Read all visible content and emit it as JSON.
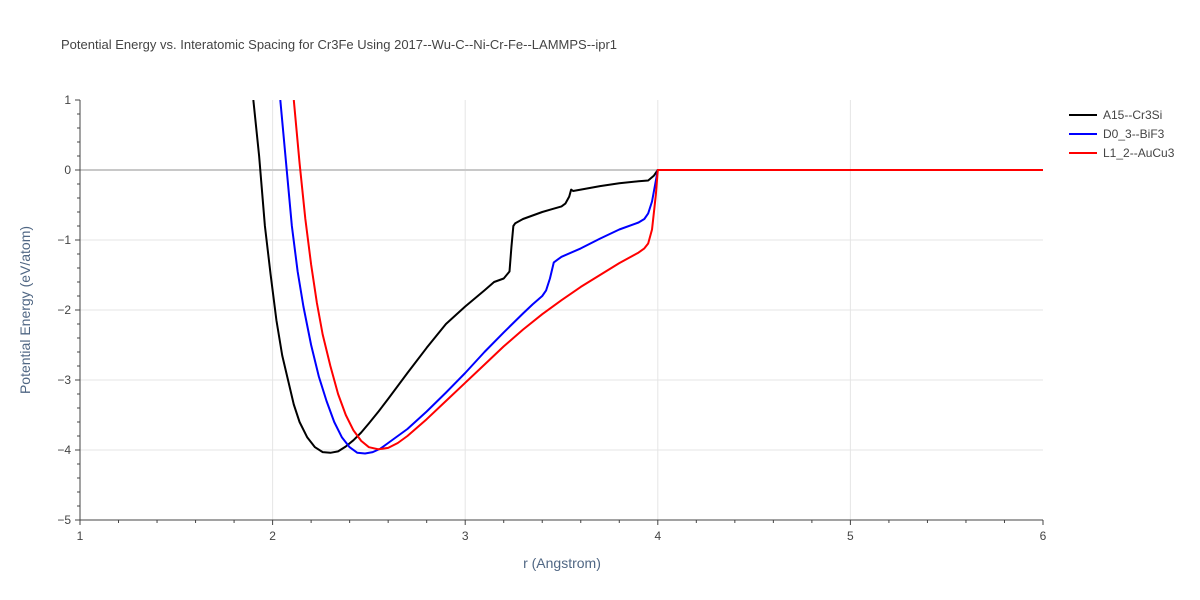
{
  "chart_data": {
    "type": "line",
    "title": "Potential Energy vs. Interatomic Spacing for Cr3Fe Using 2017--Wu-C--Ni-Cr-Fe--LAMMPS--ipr1",
    "xlabel": "r (Angstrom)",
    "ylabel": "Potential Energy (eV/atom)",
    "xlim": [
      1,
      6
    ],
    "ylim": [
      -5,
      1
    ],
    "xticks": [
      1,
      2,
      3,
      4,
      5,
      6
    ],
    "xtick_labels": [
      "1",
      "2",
      "3",
      "4",
      "5",
      "6"
    ],
    "yticks": [
      1,
      0,
      -1,
      -2,
      -3,
      -4,
      -5
    ],
    "ytick_labels": [
      "1",
      "0",
      "−1",
      "−2",
      "−3",
      "−4",
      "−5"
    ],
    "grid": true,
    "legend_position": "top-right",
    "series": [
      {
        "name": "A15--Cr3Si",
        "color": "#000000",
        "x": [
          1.9,
          1.93,
          1.96,
          1.99,
          2.02,
          2.05,
          2.08,
          2.11,
          2.14,
          2.18,
          2.22,
          2.26,
          2.3,
          2.34,
          2.38,
          2.42,
          2.46,
          2.5,
          2.55,
          2.6,
          2.7,
          2.8,
          2.9,
          3.0,
          3.1,
          3.15,
          3.2,
          3.23,
          3.24,
          3.25,
          3.26,
          3.28,
          3.3,
          3.35,
          3.4,
          3.45,
          3.5,
          3.52,
          3.54,
          3.55,
          3.56,
          3.6,
          3.7,
          3.8,
          3.9,
          3.95,
          3.98,
          4.0,
          4.5,
          5.0,
          5.5,
          6.0
        ],
        "y": [
          1.0,
          0.2,
          -0.8,
          -1.5,
          -2.15,
          -2.65,
          -3.0,
          -3.35,
          -3.6,
          -3.82,
          -3.96,
          -4.03,
          -4.04,
          -4.02,
          -3.95,
          -3.86,
          -3.75,
          -3.62,
          -3.45,
          -3.27,
          -2.9,
          -2.54,
          -2.2,
          -1.95,
          -1.72,
          -1.6,
          -1.55,
          -1.45,
          -1.1,
          -0.8,
          -0.76,
          -0.73,
          -0.7,
          -0.65,
          -0.6,
          -0.56,
          -0.52,
          -0.48,
          -0.38,
          -0.28,
          -0.3,
          -0.28,
          -0.23,
          -0.19,
          -0.16,
          -0.15,
          -0.08,
          0.0,
          0.0,
          0.0,
          0.0,
          0.0
        ]
      },
      {
        "name": "D0_3--BiF3",
        "color": "#0000ff",
        "x": [
          2.04,
          2.07,
          2.1,
          2.13,
          2.16,
          2.2,
          2.24,
          2.28,
          2.32,
          2.36,
          2.4,
          2.44,
          2.48,
          2.52,
          2.56,
          2.6,
          2.7,
          2.8,
          2.9,
          3.0,
          3.1,
          3.2,
          3.3,
          3.35,
          3.4,
          3.42,
          3.44,
          3.46,
          3.48,
          3.5,
          3.6,
          3.7,
          3.8,
          3.9,
          3.93,
          3.95,
          3.97,
          4.0,
          4.5,
          5.0,
          5.5,
          6.0
        ],
        "y": [
          1.0,
          0.1,
          -0.8,
          -1.45,
          -1.95,
          -2.5,
          -2.95,
          -3.3,
          -3.6,
          -3.82,
          -3.96,
          -4.04,
          -4.05,
          -4.03,
          -3.98,
          -3.9,
          -3.7,
          -3.45,
          -3.18,
          -2.9,
          -2.6,
          -2.32,
          -2.05,
          -1.92,
          -1.8,
          -1.72,
          -1.55,
          -1.32,
          -1.28,
          -1.24,
          -1.12,
          -0.98,
          -0.85,
          -0.75,
          -0.7,
          -0.62,
          -0.45,
          0.0,
          0.0,
          0.0,
          0.0,
          0.0
        ]
      },
      {
        "name": "L1_2--AuCu3",
        "color": "#ff0000",
        "x": [
          2.11,
          2.14,
          2.17,
          2.2,
          2.23,
          2.26,
          2.3,
          2.34,
          2.38,
          2.42,
          2.46,
          2.5,
          2.55,
          2.6,
          2.65,
          2.7,
          2.8,
          2.9,
          3.0,
          3.1,
          3.2,
          3.3,
          3.4,
          3.5,
          3.6,
          3.7,
          3.8,
          3.9,
          3.93,
          3.95,
          3.97,
          3.99,
          4.0,
          4.5,
          5.0,
          5.5,
          6.0
        ],
        "y": [
          1.0,
          0.1,
          -0.7,
          -1.35,
          -1.9,
          -2.35,
          -2.8,
          -3.2,
          -3.5,
          -3.72,
          -3.87,
          -3.96,
          -3.99,
          -3.97,
          -3.9,
          -3.8,
          -3.56,
          -3.3,
          -3.04,
          -2.78,
          -2.52,
          -2.28,
          -2.06,
          -1.86,
          -1.67,
          -1.5,
          -1.33,
          -1.18,
          -1.12,
          -1.05,
          -0.85,
          -0.35,
          0.0,
          0.0,
          0.0,
          0.0,
          0.0
        ]
      }
    ]
  }
}
